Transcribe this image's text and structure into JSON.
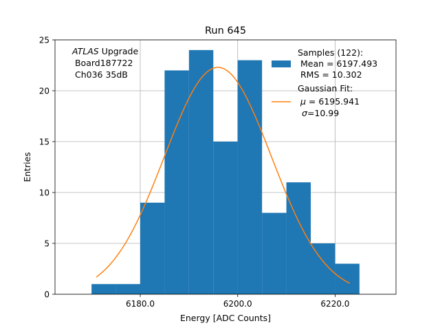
{
  "chart_data": {
    "type": "bar",
    "title": "Run 645",
    "xlabel": "Energy [ADC Counts]",
    "ylabel": "Entries",
    "xlim": [
      6162.5,
      6232.5
    ],
    "ylim": [
      0,
      25
    ],
    "grid": true,
    "x_ticks": [
      6180,
      6200,
      6220
    ],
    "x_tick_labels": [
      "6180.0",
      "6200.0",
      "6220.0"
    ],
    "y_ticks": [
      0,
      5,
      10,
      15,
      20,
      25
    ],
    "y_tick_labels": [
      "0",
      "5",
      "10",
      "15",
      "20",
      "25"
    ],
    "histogram": {
      "bin_edges": [
        6170,
        6175,
        6180,
        6185,
        6190,
        6195,
        6200,
        6205,
        6210,
        6215,
        6220,
        6225
      ],
      "counts": [
        1,
        1,
        9,
        22,
        24,
        15,
        23,
        8,
        11,
        5,
        3
      ],
      "color": "#1f77b4"
    },
    "fit": {
      "type": "gaussian",
      "amplitude": 22.3,
      "mu": 6195.941,
      "sigma": 10.99,
      "x_range": [
        6171,
        6223
      ],
      "color": "#ff7f0e"
    },
    "annotation": {
      "line1_italic": "ATLAS",
      "line1_rest": " Upgrade",
      "line2": " Board187722",
      "line3": " Ch036 35dB"
    },
    "legend": {
      "placement": "top-right",
      "samples_line1": "Samples (122):",
      "samples_line2": " Mean = 6197.493",
      "samples_line3": " RMS = 10.302",
      "fit_line1": "Gaussian Fit:",
      "fit_mu_symbol": "μ",
      "fit_mu_rest": " = 6195.941",
      "fit_sigma_symbol": "σ",
      "fit_sigma_rest": "=10.99"
    }
  }
}
